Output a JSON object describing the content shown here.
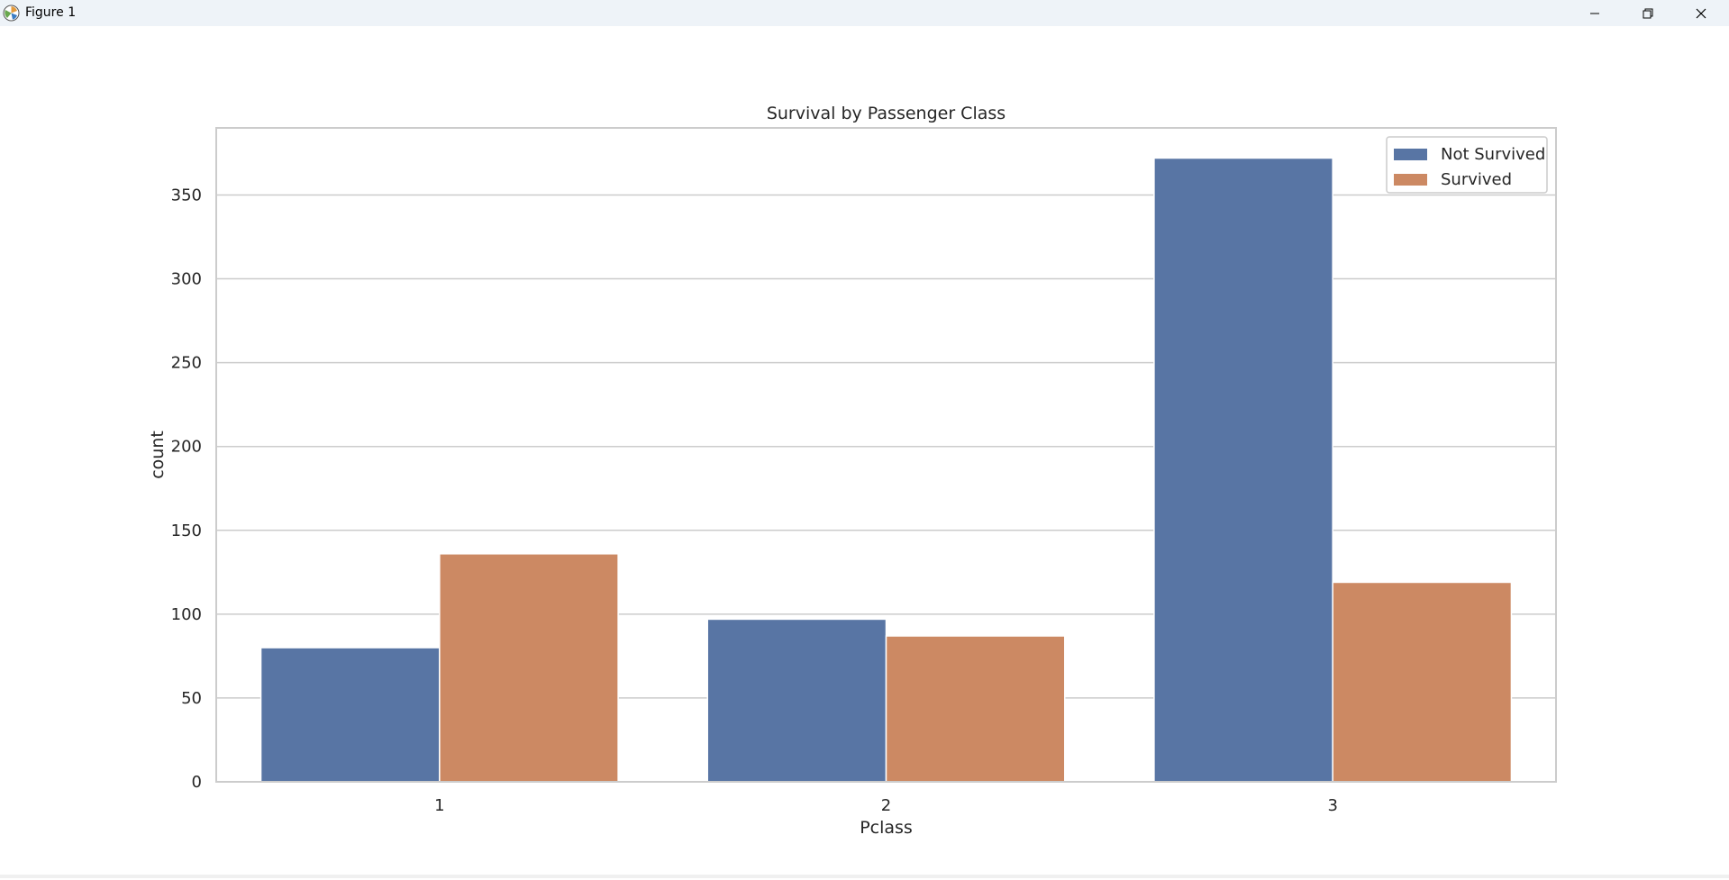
{
  "window": {
    "title": "Figure 1",
    "icons": {
      "app": "matplotlib-figure-icon",
      "minimize": "minimize-icon",
      "restore": "restore-icon",
      "close": "close-icon"
    }
  },
  "colors": {
    "not_survived": "#5875a4",
    "survived": "#cc8963",
    "grid": "#cccccc",
    "axes_edge": "#cccccc",
    "text": "#262626"
  },
  "chart_data": {
    "type": "bar",
    "title": "Survival by Passenger Class",
    "xlabel": "Pclass",
    "ylabel": "count",
    "categories": [
      "1",
      "2",
      "3"
    ],
    "series": [
      {
        "name": "Not Survived",
        "values": [
          80,
          97,
          372
        ]
      },
      {
        "name": "Survived",
        "values": [
          136,
          87,
          119
        ]
      }
    ],
    "ylim": [
      0,
      390
    ],
    "yticks": [
      0,
      50,
      100,
      150,
      200,
      250,
      300,
      350
    ],
    "grid": true,
    "legend_position": "top-right"
  }
}
